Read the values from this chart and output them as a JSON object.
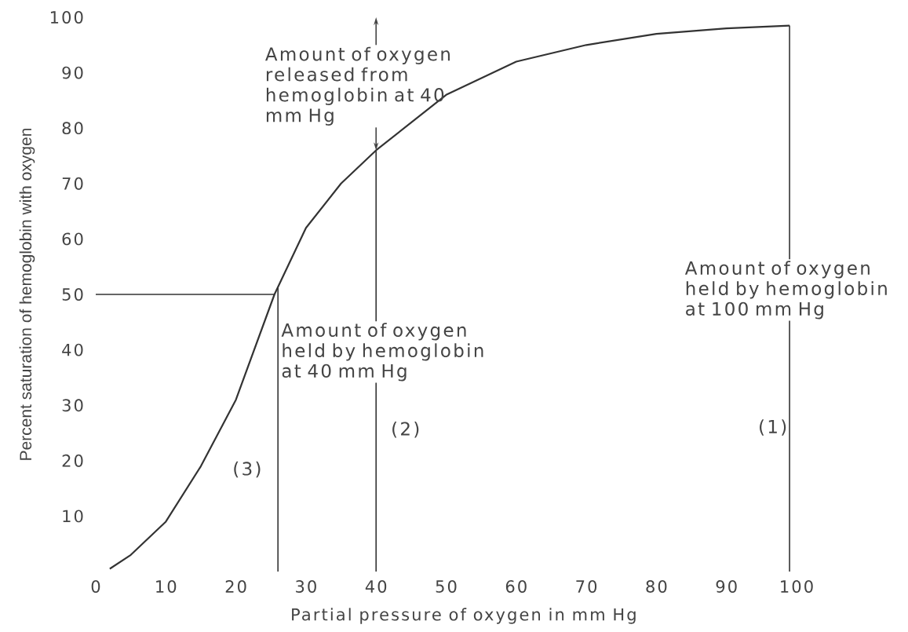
{
  "chart_data": {
    "type": "line",
    "xlabel": "Partial pressure of oxygen in mm Hg",
    "ylabel": "Percent saturation of hemoglobin with oxygen",
    "xlim": [
      0,
      100
    ],
    "ylim": [
      0,
      100
    ],
    "xticks": [
      0,
      10,
      20,
      30,
      40,
      50,
      60,
      70,
      80,
      90,
      100
    ],
    "yticks": [
      10,
      20,
      30,
      40,
      50,
      60,
      70,
      80,
      90,
      100
    ],
    "series": [
      {
        "color": "#333333",
        "x": [
          2,
          5,
          10,
          15,
          20,
          25.5,
          30,
          35,
          40,
          45,
          50,
          60,
          70,
          80,
          90,
          99
        ],
        "values": [
          0.5,
          3,
          9,
          19,
          31,
          50,
          62,
          70,
          76,
          81,
          86,
          92,
          95,
          97,
          98,
          98.5
        ]
      }
    ],
    "ref_lines": [
      {
        "axis": "x",
        "value": 99,
        "color": "#333333"
      },
      {
        "axis": "x",
        "value": 40,
        "color": "#333333"
      },
      {
        "axis": "x",
        "value": 26,
        "color": "#333333"
      },
      {
        "axis": "y",
        "value": 50,
        "color": "#333333"
      }
    ],
    "annotations": [
      {
        "text": "Amount of oxygen released from hemoglobin at 40 mm Hg",
        "x": 40,
        "y": 76
      },
      "Amount of oxygen held by hemoglobin at 40 mm Hg",
      "Amount of oxygen held by hemoglobin at 100 mm Hg",
      "(1)",
      "(2)",
      "(3)"
    ]
  }
}
